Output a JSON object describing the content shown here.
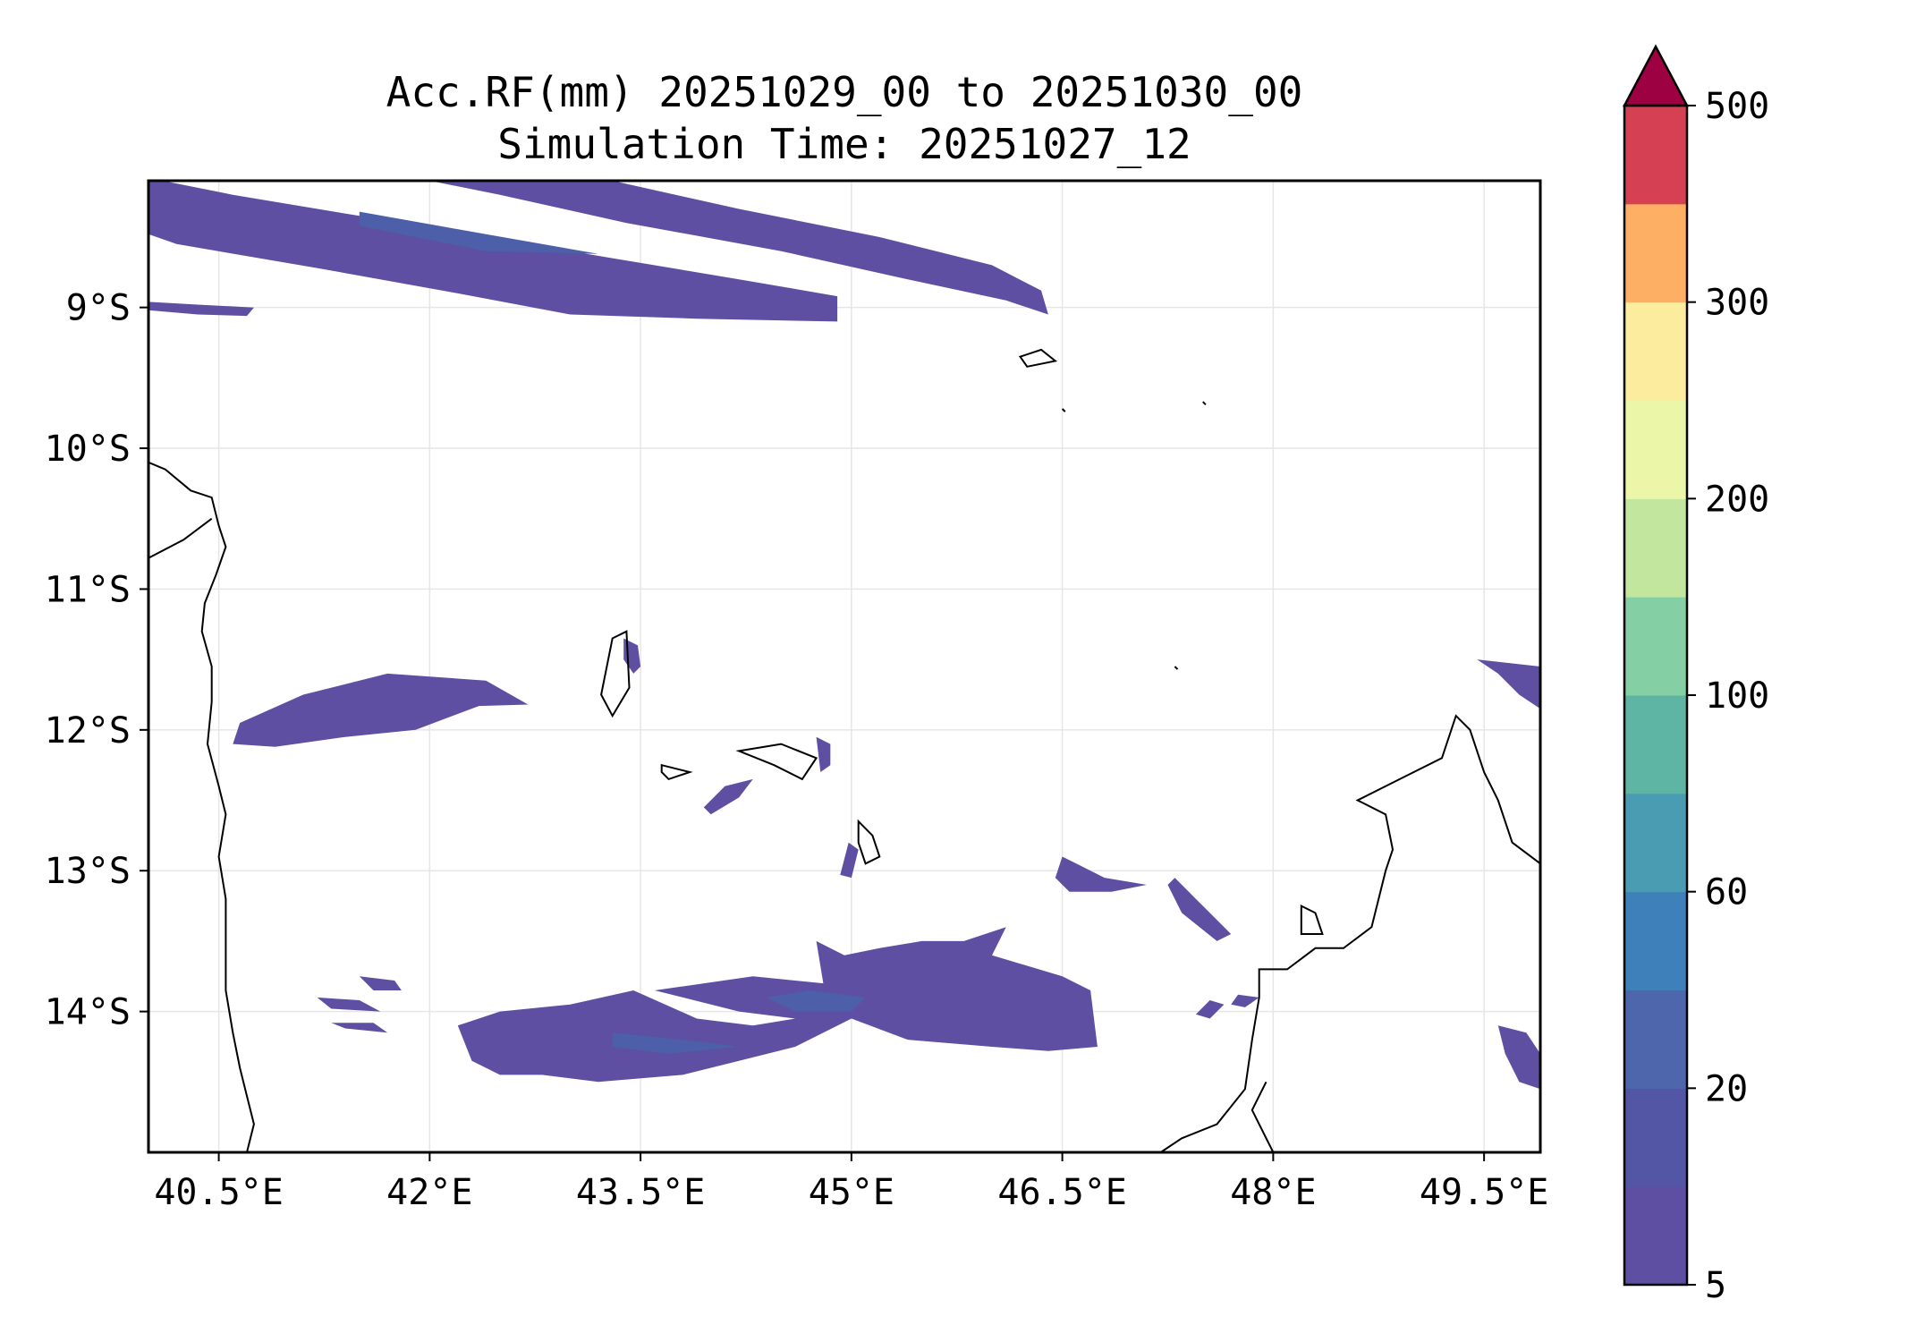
{
  "title": {
    "line1": "Acc.RF(mm) 20251029_00 to 20251030_00",
    "line2": "Simulation Time: 20251027_12"
  },
  "map": {
    "lon_range": [
      40.0,
      49.9
    ],
    "lat_range": [
      -15.0,
      -8.1
    ],
    "x_ticks": [
      {
        "value": 40.5,
        "label": "40.5°E"
      },
      {
        "value": 42.0,
        "label": "42°E"
      },
      {
        "value": 43.5,
        "label": "43.5°E"
      },
      {
        "value": 45.0,
        "label": "45°E"
      },
      {
        "value": 46.5,
        "label": "46.5°E"
      },
      {
        "value": 48.0,
        "label": "48°E"
      },
      {
        "value": 49.5,
        "label": "49.5°E"
      }
    ],
    "y_ticks": [
      {
        "value": -9,
        "label": "9°S"
      },
      {
        "value": -10,
        "label": "10°S"
      },
      {
        "value": -11,
        "label": "11°S"
      },
      {
        "value": -12,
        "label": "12°S"
      },
      {
        "value": -13,
        "label": "13°S"
      },
      {
        "value": -14,
        "label": "14°S"
      }
    ],
    "rain_color": "#5e4fa2",
    "rain_color_darker": "#4c5fa8",
    "coast_color": "#000000",
    "rain_regions": [
      {
        "name": "northern-band-1",
        "points": [
          [
            40.0,
            -8.1
          ],
          [
            40.1,
            -8.1
          ],
          [
            40.6,
            -8.2
          ],
          [
            41.5,
            -8.35
          ],
          [
            42.4,
            -8.5
          ],
          [
            43.3,
            -8.65
          ],
          [
            44.2,
            -8.8
          ],
          [
            44.9,
            -8.92
          ],
          [
            44.9,
            -9.1
          ],
          [
            43.9,
            -9.08
          ],
          [
            43.0,
            -9.05
          ],
          [
            42.2,
            -8.9
          ],
          [
            41.2,
            -8.72
          ],
          [
            40.2,
            -8.55
          ],
          [
            40.0,
            -8.48
          ]
        ]
      },
      {
        "name": "northern-band-2",
        "points": [
          [
            42.0,
            -8.1
          ],
          [
            43.3,
            -8.1
          ],
          [
            44.2,
            -8.3
          ],
          [
            45.2,
            -8.5
          ],
          [
            46.0,
            -8.7
          ],
          [
            46.35,
            -8.88
          ],
          [
            46.4,
            -9.05
          ],
          [
            46.1,
            -8.95
          ],
          [
            45.4,
            -8.8
          ],
          [
            44.5,
            -8.6
          ],
          [
            43.4,
            -8.4
          ],
          [
            42.5,
            -8.2
          ]
        ]
      },
      {
        "name": "northern-sliver",
        "points": [
          [
            40.0,
            -8.96
          ],
          [
            40.35,
            -8.98
          ],
          [
            40.75,
            -9.0
          ],
          [
            40.7,
            -9.06
          ],
          [
            40.35,
            -9.05
          ],
          [
            40.0,
            -9.02
          ]
        ]
      },
      {
        "name": "west-patch-12s",
        "points": [
          [
            40.65,
            -11.95
          ],
          [
            41.1,
            -11.75
          ],
          [
            41.7,
            -11.6
          ],
          [
            42.4,
            -11.65
          ],
          [
            42.7,
            -11.82
          ],
          [
            42.35,
            -11.83
          ],
          [
            41.9,
            -12.0
          ],
          [
            41.4,
            -12.05
          ],
          [
            40.9,
            -12.12
          ],
          [
            40.6,
            -12.1
          ]
        ]
      },
      {
        "name": "comoros-patch",
        "points": [
          [
            43.38,
            -11.35
          ],
          [
            43.48,
            -11.4
          ],
          [
            43.5,
            -11.55
          ],
          [
            43.45,
            -11.6
          ],
          [
            43.38,
            -11.5
          ]
        ]
      },
      {
        "name": "mayotte-patch",
        "points": [
          [
            44.75,
            -12.05
          ],
          [
            44.85,
            -12.1
          ],
          [
            44.85,
            -12.25
          ],
          [
            44.78,
            -12.3
          ]
        ]
      },
      {
        "name": "small-12-5s",
        "points": [
          [
            43.95,
            -12.55
          ],
          [
            44.1,
            -12.4
          ],
          [
            44.3,
            -12.35
          ],
          [
            44.2,
            -12.48
          ],
          [
            44.0,
            -12.6
          ]
        ]
      },
      {
        "name": "central-13s",
        "points": [
          [
            44.98,
            -12.8
          ],
          [
            45.05,
            -12.85
          ],
          [
            45.0,
            -13.05
          ],
          [
            44.92,
            -13.03
          ]
        ]
      },
      {
        "name": "patch-46-5",
        "points": [
          [
            46.5,
            -12.9
          ],
          [
            46.6,
            -12.95
          ],
          [
            46.8,
            -13.05
          ],
          [
            47.1,
            -13.1
          ],
          [
            46.85,
            -13.15
          ],
          [
            46.55,
            -13.15
          ],
          [
            46.45,
            -13.05
          ]
        ]
      },
      {
        "name": "main-14s-band",
        "points": [
          [
            42.5,
            -14.0
          ],
          [
            43.0,
            -13.95
          ],
          [
            43.45,
            -13.85
          ],
          [
            43.9,
            -14.05
          ],
          [
            44.3,
            -14.1
          ],
          [
            44.6,
            -14.05
          ],
          [
            44.2,
            -14.0
          ],
          [
            43.6,
            -13.85
          ],
          [
            44.3,
            -13.75
          ],
          [
            44.8,
            -13.8
          ],
          [
            44.75,
            -13.5
          ],
          [
            44.95,
            -13.6
          ],
          [
            45.2,
            -13.55
          ],
          [
            45.5,
            -13.5
          ],
          [
            45.8,
            -13.5
          ],
          [
            46.1,
            -13.4
          ],
          [
            46.0,
            -13.6
          ],
          [
            46.5,
            -13.75
          ],
          [
            46.7,
            -13.85
          ],
          [
            46.75,
            -14.25
          ],
          [
            46.4,
            -14.28
          ],
          [
            46.0,
            -14.25
          ],
          [
            45.4,
            -14.2
          ],
          [
            45.0,
            -14.05
          ],
          [
            44.6,
            -14.25
          ],
          [
            44.2,
            -14.35
          ],
          [
            43.8,
            -14.45
          ],
          [
            43.2,
            -14.5
          ],
          [
            42.8,
            -14.45
          ],
          [
            42.5,
            -14.45
          ],
          [
            42.3,
            -14.35
          ],
          [
            42.2,
            -14.1
          ]
        ]
      },
      {
        "name": "patch-47-3",
        "points": [
          [
            47.3,
            -13.05
          ],
          [
            47.45,
            -13.2
          ],
          [
            47.7,
            -13.45
          ],
          [
            47.6,
            -13.5
          ],
          [
            47.35,
            -13.3
          ],
          [
            47.25,
            -13.1
          ]
        ]
      },
      {
        "name": "east-edge-top",
        "points": [
          [
            49.45,
            -11.5
          ],
          [
            49.9,
            -11.55
          ],
          [
            49.9,
            -11.85
          ],
          [
            49.75,
            -11.75
          ],
          [
            49.6,
            -11.6
          ]
        ]
      },
      {
        "name": "east-edge-bottom",
        "points": [
          [
            49.6,
            -14.1
          ],
          [
            49.8,
            -14.15
          ],
          [
            49.9,
            -14.3
          ],
          [
            49.9,
            -14.55
          ],
          [
            49.75,
            -14.5
          ],
          [
            49.65,
            -14.3
          ]
        ]
      },
      {
        "name": "small-13-8s",
        "points": [
          [
            41.5,
            -13.75
          ],
          [
            41.75,
            -13.78
          ],
          [
            41.8,
            -13.85
          ],
          [
            41.6,
            -13.85
          ]
        ]
      },
      {
        "name": "small-14-1s",
        "points": [
          [
            41.3,
            -14.08
          ],
          [
            41.6,
            -14.08
          ],
          [
            41.7,
            -14.15
          ],
          [
            41.4,
            -14.12
          ]
        ]
      },
      {
        "name": "small-13-9s",
        "points": [
          [
            41.2,
            -13.9
          ],
          [
            41.5,
            -13.92
          ],
          [
            41.65,
            -14.0
          ],
          [
            41.3,
            -13.98
          ]
        ]
      },
      {
        "name": "small-47-5",
        "points": [
          [
            47.55,
            -13.92
          ],
          [
            47.65,
            -13.95
          ],
          [
            47.55,
            -14.05
          ],
          [
            47.45,
            -14.02
          ]
        ]
      },
      {
        "name": "small-47-8",
        "points": [
          [
            47.75,
            -13.88
          ],
          [
            47.9,
            -13.9
          ],
          [
            47.8,
            -13.97
          ],
          [
            47.7,
            -13.95
          ]
        ]
      }
    ],
    "darker_regions": [
      {
        "name": "core-14s-1",
        "points": [
          [
            44.4,
            -13.9
          ],
          [
            44.7,
            -13.85
          ],
          [
            45.1,
            -13.9
          ],
          [
            45.0,
            -14.0
          ],
          [
            44.6,
            -14.0
          ]
        ]
      },
      {
        "name": "core-14s-2",
        "points": [
          [
            43.3,
            -14.15
          ],
          [
            43.8,
            -14.2
          ],
          [
            44.2,
            -14.25
          ],
          [
            43.7,
            -14.3
          ],
          [
            43.3,
            -14.25
          ]
        ]
      },
      {
        "name": "core-north",
        "points": [
          [
            41.5,
            -8.32
          ],
          [
            42.4,
            -8.48
          ],
          [
            43.2,
            -8.62
          ],
          [
            42.4,
            -8.6
          ],
          [
            41.5,
            -8.42
          ]
        ]
      }
    ],
    "coastlines": [
      {
        "name": "africa-coast",
        "points": [
          [
            40.0,
            -10.1
          ],
          [
            40.12,
            -10.15
          ],
          [
            40.3,
            -10.3
          ],
          [
            40.45,
            -10.35
          ],
          [
            40.5,
            -10.55
          ],
          [
            40.55,
            -10.7
          ],
          [
            40.48,
            -10.9
          ],
          [
            40.4,
            -11.1
          ],
          [
            40.38,
            -11.3
          ],
          [
            40.45,
            -11.55
          ],
          [
            40.45,
            -11.8
          ],
          [
            40.42,
            -12.1
          ],
          [
            40.5,
            -12.4
          ],
          [
            40.55,
            -12.6
          ],
          [
            40.5,
            -12.9
          ],
          [
            40.55,
            -13.2
          ],
          [
            40.55,
            -13.5
          ],
          [
            40.55,
            -13.85
          ],
          [
            40.6,
            -14.15
          ],
          [
            40.65,
            -14.4
          ],
          [
            40.7,
            -14.6
          ],
          [
            40.75,
            -14.8
          ],
          [
            40.7,
            -15.0
          ]
        ]
      },
      {
        "name": "africa-inland",
        "points": [
          [
            40.0,
            -10.78
          ],
          [
            40.25,
            -10.65
          ],
          [
            40.45,
            -10.5
          ]
        ]
      },
      {
        "name": "madagascar-coast",
        "points": [
          [
            47.2,
            -15.0
          ],
          [
            47.35,
            -14.9
          ],
          [
            47.6,
            -14.8
          ],
          [
            47.8,
            -14.55
          ],
          [
            47.85,
            -14.2
          ],
          [
            47.9,
            -13.9
          ],
          [
            47.9,
            -13.7
          ],
          [
            48.1,
            -13.7
          ],
          [
            48.3,
            -13.55
          ],
          [
            48.5,
            -13.55
          ],
          [
            48.7,
            -13.4
          ],
          [
            48.8,
            -13.0
          ],
          [
            48.85,
            -12.85
          ],
          [
            48.8,
            -12.6
          ],
          [
            48.6,
            -12.5
          ],
          [
            48.9,
            -12.35
          ],
          [
            49.2,
            -12.2
          ],
          [
            49.3,
            -11.9
          ],
          [
            49.4,
            -12.0
          ],
          [
            49.5,
            -12.3
          ],
          [
            49.6,
            -12.5
          ],
          [
            49.7,
            -12.8
          ],
          [
            49.9,
            -12.95
          ]
        ]
      },
      {
        "name": "madagascar-south-coast",
        "points": [
          [
            48.0,
            -15.0
          ],
          [
            47.85,
            -14.7
          ],
          [
            47.95,
            -14.5
          ]
        ]
      },
      {
        "name": "grande-comore",
        "points": [
          [
            43.3,
            -11.35
          ],
          [
            43.4,
            -11.3
          ],
          [
            43.42,
            -11.7
          ],
          [
            43.3,
            -11.9
          ],
          [
            43.22,
            -11.75
          ]
        ]
      },
      {
        "name": "moheli",
        "points": [
          [
            43.65,
            -12.25
          ],
          [
            43.85,
            -12.3
          ],
          [
            43.7,
            -12.35
          ],
          [
            43.65,
            -12.3
          ]
        ]
      },
      {
        "name": "anjouan",
        "points": [
          [
            44.2,
            -12.15
          ],
          [
            44.5,
            -12.1
          ],
          [
            44.75,
            -12.2
          ],
          [
            44.65,
            -12.35
          ],
          [
            44.45,
            -12.25
          ]
        ]
      },
      {
        "name": "mayotte",
        "points": [
          [
            45.05,
            -12.65
          ],
          [
            45.15,
            -12.75
          ],
          [
            45.2,
            -12.9
          ],
          [
            45.1,
            -12.95
          ],
          [
            45.05,
            -12.8
          ]
        ]
      },
      {
        "name": "glorioso",
        "points": [
          [
            46.2,
            -9.35
          ],
          [
            46.35,
            -9.3
          ],
          [
            46.45,
            -9.38
          ],
          [
            46.25,
            -9.42
          ]
        ]
      },
      {
        "name": "small-island-1",
        "points": [
          [
            46.5,
            -9.72
          ],
          [
            46.52,
            -9.74
          ]
        ]
      },
      {
        "name": "small-island-2",
        "points": [
          [
            47.5,
            -9.67
          ],
          [
            47.52,
            -9.69
          ]
        ]
      },
      {
        "name": "small-island-3",
        "points": [
          [
            47.3,
            -11.55
          ],
          [
            47.32,
            -11.57
          ]
        ]
      },
      {
        "name": "nosy-be",
        "points": [
          [
            48.2,
            -13.25
          ],
          [
            48.3,
            -13.3
          ],
          [
            48.35,
            -13.45
          ],
          [
            48.2,
            -13.45
          ]
        ]
      }
    ]
  },
  "colorbar": {
    "colors": [
      "#5e4fa2",
      "#5355a5",
      "#4e66ac",
      "#3e80b9",
      "#4a9cb2",
      "#5eb5a4",
      "#85cfa4",
      "#c3e69e",
      "#ecf6a8",
      "#fcec9d",
      "#fdb064",
      "#d54152"
    ],
    "extend_color": "#9e0142",
    "tick_labels": [
      {
        "label": "5",
        "level": 0
      },
      {
        "label": "20",
        "level": 2
      },
      {
        "label": "60",
        "level": 4
      },
      {
        "label": "100",
        "level": 6
      },
      {
        "label": "200",
        "level": 8
      },
      {
        "label": "300",
        "level": 10
      },
      {
        "label": "500",
        "level": 12
      }
    ]
  }
}
